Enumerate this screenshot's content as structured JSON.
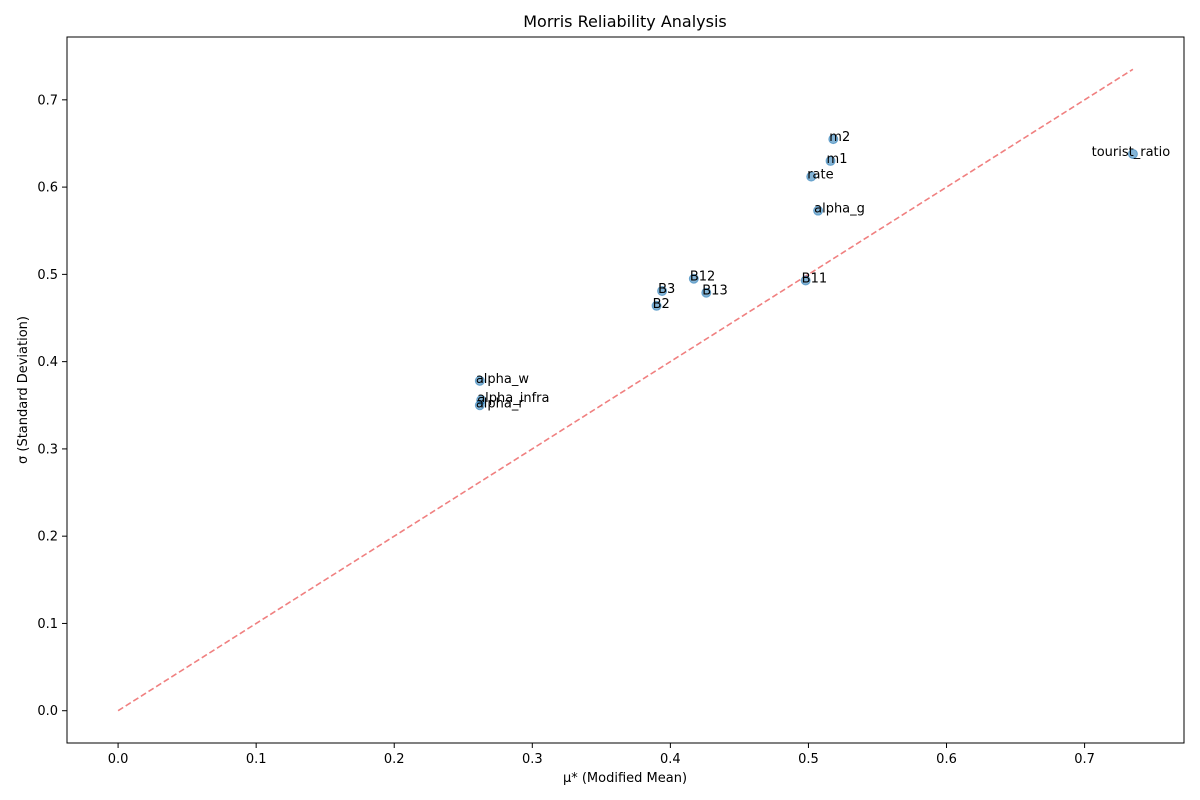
{
  "chart_data": {
    "type": "scatter",
    "title": "Morris Reliability Analysis",
    "xlabel": "μ* (Modified Mean)",
    "ylabel": "σ (Standard Deviation)",
    "xlim": [
      -0.037,
      0.772
    ],
    "ylim": [
      -0.037,
      0.772
    ],
    "xticks": [
      "0.0",
      "0.1",
      "0.2",
      "0.3",
      "0.4",
      "0.5",
      "0.6",
      "0.7"
    ],
    "yticks": [
      "0.0",
      "0.1",
      "0.2",
      "0.3",
      "0.4",
      "0.5",
      "0.6",
      "0.7"
    ],
    "grid": false,
    "point_color": "#1f77b4",
    "reference_line": {
      "from": [
        0,
        0
      ],
      "to": [
        0.735,
        0.735
      ],
      "color": "#f08080",
      "style": "dashed"
    },
    "points": [
      {
        "label": "m2",
        "x": 0.518,
        "y": 0.655
      },
      {
        "label": "m1",
        "x": 0.516,
        "y": 0.63
      },
      {
        "label": "tourist_ratio",
        "x": 0.735,
        "y": 0.638
      },
      {
        "label": "rate",
        "x": 0.502,
        "y": 0.612
      },
      {
        "label": "alpha_g",
        "x": 0.507,
        "y": 0.573
      },
      {
        "label": "B12",
        "x": 0.417,
        "y": 0.495
      },
      {
        "label": "B11",
        "x": 0.498,
        "y": 0.493
      },
      {
        "label": "B3",
        "x": 0.394,
        "y": 0.481
      },
      {
        "label": "B13",
        "x": 0.426,
        "y": 0.479
      },
      {
        "label": "B2",
        "x": 0.39,
        "y": 0.464
      },
      {
        "label": "alpha_w",
        "x": 0.262,
        "y": 0.378
      },
      {
        "label": "alpha_infra",
        "x": 0.263,
        "y": 0.356
      },
      {
        "label": "alpha_r",
        "x": 0.262,
        "y": 0.35
      }
    ]
  }
}
